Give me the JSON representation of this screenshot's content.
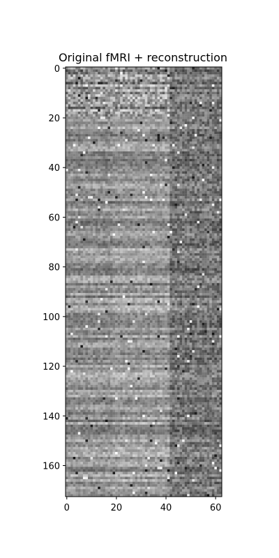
{
  "chart_data": {
    "type": "heatmap",
    "title": "Original fMRI + reconstruction",
    "xlabel": "",
    "ylabel": "",
    "colormap": "gray",
    "columns": 63,
    "rows": 173,
    "split_column": 42,
    "x_ticks": [
      0,
      20,
      40,
      60
    ],
    "y_ticks": [
      0,
      20,
      40,
      60,
      80,
      100,
      120,
      140,
      160
    ],
    "y_axis_inverted": true,
    "grid": false
  }
}
